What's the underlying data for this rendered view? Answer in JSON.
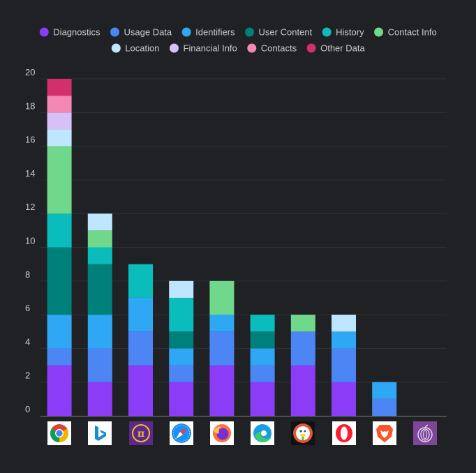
{
  "chart_data": {
    "type": "bar",
    "stacked": true,
    "ylim": [
      0,
      20
    ],
    "yticks": [
      0,
      2,
      4,
      6,
      8,
      10,
      12,
      14,
      16,
      18,
      20
    ],
    "grid": true,
    "legend_position": "top",
    "categories": [
      "chrome-logo",
      "bing-logo",
      "pi-browser-logo",
      "safari-logo",
      "firefox-logo",
      "edge-logo",
      "duckduckgo-logo",
      "opera-logo",
      "brave-logo",
      "tor-logo"
    ],
    "series": [
      {
        "name": "Diagnostics",
        "color": "#8b3cf7",
        "values": [
          3,
          2,
          3,
          2,
          3,
          2,
          3,
          2,
          0,
          0
        ]
      },
      {
        "name": "Usage Data",
        "color": "#4c86f5",
        "values": [
          1,
          2,
          2,
          1,
          2,
          1,
          2,
          2,
          1,
          0
        ]
      },
      {
        "name": "Identifiers",
        "color": "#2ea8f5",
        "values": [
          2,
          2,
          2,
          1,
          1,
          1,
          0,
          1,
          1,
          0
        ]
      },
      {
        "name": "User Content",
        "color": "#00807a",
        "values": [
          4,
          3,
          0,
          1,
          0,
          1,
          0,
          0,
          0,
          0
        ]
      },
      {
        "name": "History",
        "color": "#0bbcbc",
        "values": [
          2,
          1,
          2,
          2,
          0,
          1,
          0,
          0,
          0,
          0
        ]
      },
      {
        "name": "Contact Info",
        "color": "#6fd88a",
        "values": [
          4,
          1,
          0,
          0,
          2,
          0,
          1,
          0,
          0,
          0
        ]
      },
      {
        "name": "Location",
        "color": "#bfe6ff",
        "values": [
          1,
          1,
          0,
          1,
          0,
          0,
          0,
          1,
          0,
          0
        ]
      },
      {
        "name": "Financial Info",
        "color": "#d7bff8",
        "values": [
          1,
          0,
          0,
          0,
          0,
          0,
          0,
          0,
          0,
          0
        ]
      },
      {
        "name": "Contacts",
        "color": "#f587b3",
        "values": [
          1,
          0,
          0,
          0,
          0,
          0,
          0,
          0,
          0,
          0
        ]
      },
      {
        "name": "Other Data",
        "color": "#d32f6d",
        "values": [
          1,
          0,
          0,
          0,
          0,
          0,
          0,
          0,
          0,
          0
        ]
      }
    ]
  }
}
